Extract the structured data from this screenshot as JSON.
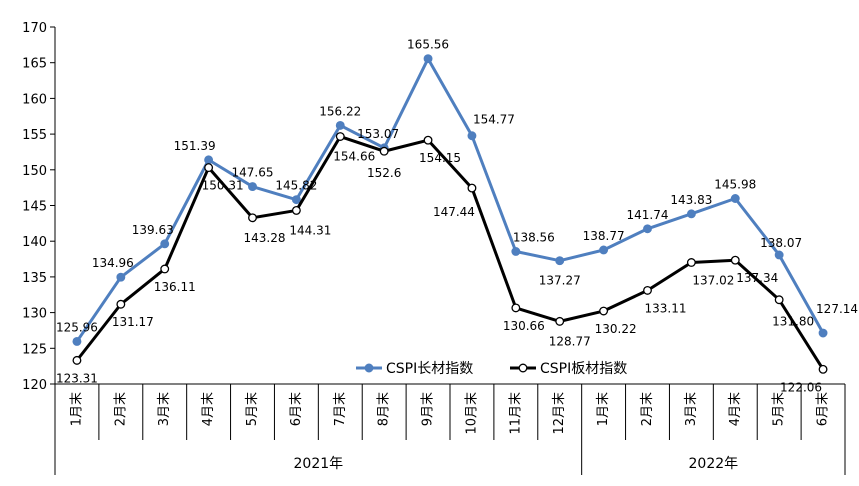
{
  "chart_data": {
    "type": "line",
    "title": "",
    "xlabel": "",
    "ylabel": "",
    "ylim": [
      120,
      170
    ],
    "yticks": [
      120,
      125,
      130,
      135,
      140,
      145,
      150,
      155,
      160,
      165,
      170
    ],
    "grid": false,
    "legend_position": "bottom-center",
    "categories": [
      "1月末",
      "2月末",
      "3月末",
      "4月末",
      "5月末",
      "6月末",
      "7月末",
      "8月末",
      "9月末",
      "10月末",
      "11月末",
      "12月末",
      "1月末",
      "2月末",
      "3月末",
      "4月末",
      "5月末",
      "6月末"
    ],
    "year_groups": [
      {
        "label": "2021年",
        "count": 12
      },
      {
        "label": "2022年",
        "count": 6
      }
    ],
    "series": [
      {
        "name": "CSPI长材指数",
        "color": "#4F7FBF",
        "marker": "filled-circle",
        "values": [
          125.96,
          134.96,
          139.63,
          151.39,
          147.65,
          145.82,
          156.22,
          153.07,
          165.56,
          154.77,
          138.56,
          137.27,
          138.77,
          141.74,
          143.83,
          145.98,
          138.07,
          127.14
        ],
        "labels": [
          "125.96",
          "134.96",
          "139.63",
          "151.39",
          "147.65",
          "145.82",
          "156.22",
          "153.07",
          "165.56",
          "154.77",
          "138.56",
          "137.27",
          "138.77",
          "141.74",
          "143.83",
          "145.98",
          "138.07",
          "127.14"
        ]
      },
      {
        "name": "CSPI板材指数",
        "color": "#000000",
        "marker": "hollow-circle",
        "values": [
          123.31,
          131.17,
          136.11,
          150.31,
          143.28,
          144.31,
          154.66,
          152.6,
          154.15,
          147.44,
          130.66,
          128.77,
          130.22,
          133.11,
          137.02,
          137.34,
          131.8,
          122.06
        ],
        "labels": [
          "123.31",
          "131.17",
          "136.11",
          "150.31",
          "143.28",
          "144.31",
          "154.66",
          "152.6",
          "154.15",
          "147.44",
          "130.66",
          "128.77",
          "130.22",
          "133.11",
          "137.02",
          "137.34",
          "131.80",
          "122.06"
        ]
      }
    ]
  }
}
